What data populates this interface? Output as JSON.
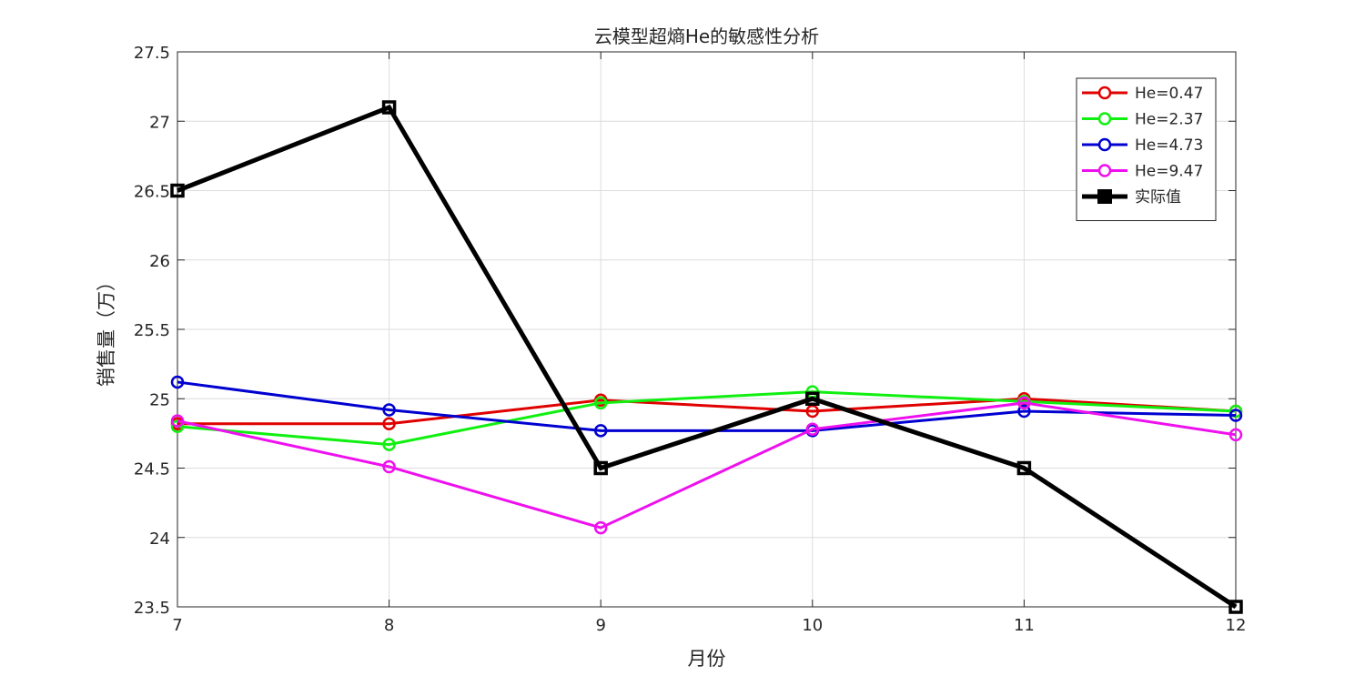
{
  "chart_data": {
    "type": "line",
    "title": "云模型超熵He的敏感性分析",
    "xlabel": "月份",
    "ylabel": "销售量（万）",
    "x": [
      7,
      8,
      9,
      10,
      11,
      12
    ],
    "xlim": [
      7,
      12
    ],
    "ylim": [
      23.5,
      27.5
    ],
    "xticks": [
      "7",
      "8",
      "9",
      "10",
      "11",
      "12"
    ],
    "yticks": [
      "23.5",
      "24",
      "24.5",
      "25",
      "25.5",
      "26",
      "26.5",
      "27",
      "27.5"
    ],
    "grid": true,
    "legend_position": "top-right",
    "series": [
      {
        "name": "He=0.47",
        "color": "#e00000",
        "marker": "circle",
        "values": [
          24.82,
          24.82,
          24.99,
          24.91,
          25.0,
          24.91
        ]
      },
      {
        "name": "He=2.37",
        "color": "#10f010",
        "marker": "circle",
        "values": [
          24.8,
          24.67,
          24.97,
          25.05,
          24.98,
          24.91
        ]
      },
      {
        "name": "He=4.73",
        "color": "#0000d0",
        "marker": "circle",
        "values": [
          25.12,
          24.92,
          24.77,
          24.77,
          24.91,
          24.88
        ]
      },
      {
        "name": "He=9.47",
        "color": "#ee10ee",
        "marker": "circle",
        "values": [
          24.84,
          24.51,
          24.07,
          24.78,
          24.97,
          24.74
        ]
      },
      {
        "name": "实际值",
        "color": "#000000",
        "marker": "square",
        "values": [
          26.5,
          27.1,
          24.5,
          25.0,
          24.5,
          23.5
        ]
      }
    ]
  }
}
